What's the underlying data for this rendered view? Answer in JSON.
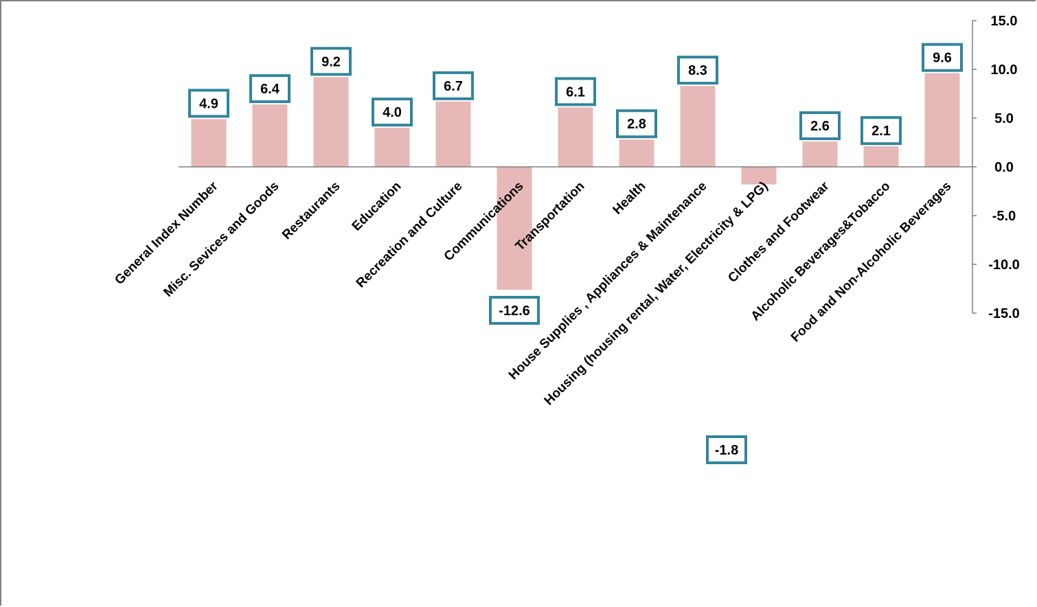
{
  "chart_data": {
    "type": "bar",
    "title": "",
    "xlabel": "",
    "ylabel": "",
    "ylim": [
      -15,
      15
    ],
    "yticks": [
      "15.0",
      "10.0",
      "5.0",
      "0.0",
      "-5.0",
      "-10.0",
      "-15.0"
    ],
    "y_axis_position": "right",
    "grid": false,
    "legend": "none",
    "bar_color": "#e6b8b7",
    "label_border_color": "#31859c",
    "categories": [
      "General Index Number",
      "Misc. Sevices and Goods",
      "Restaurants",
      "Education",
      "Recreation and Culture",
      "Communications",
      "Transportation",
      "Health",
      "House Supplies , Appliances & Maintenance",
      "Housing (housing rental, Water, Electricity & LPG)",
      "Clothes and Footwear",
      "Alcoholic Beverages&Tobacco",
      "Food and Non-Alcoholic Beverages"
    ],
    "values": [
      4.9,
      6.4,
      9.2,
      4.0,
      6.7,
      -12.6,
      6.1,
      2.8,
      8.3,
      -1.8,
      2.6,
      2.1,
      9.6
    ],
    "data_labels": [
      "4.9",
      "6.4",
      "9.2",
      "4.0",
      "6.7",
      "-12.6",
      "6.1",
      "2.8",
      "8.3",
      "-1.8",
      "2.6",
      "2.1",
      "9.6"
    ]
  }
}
